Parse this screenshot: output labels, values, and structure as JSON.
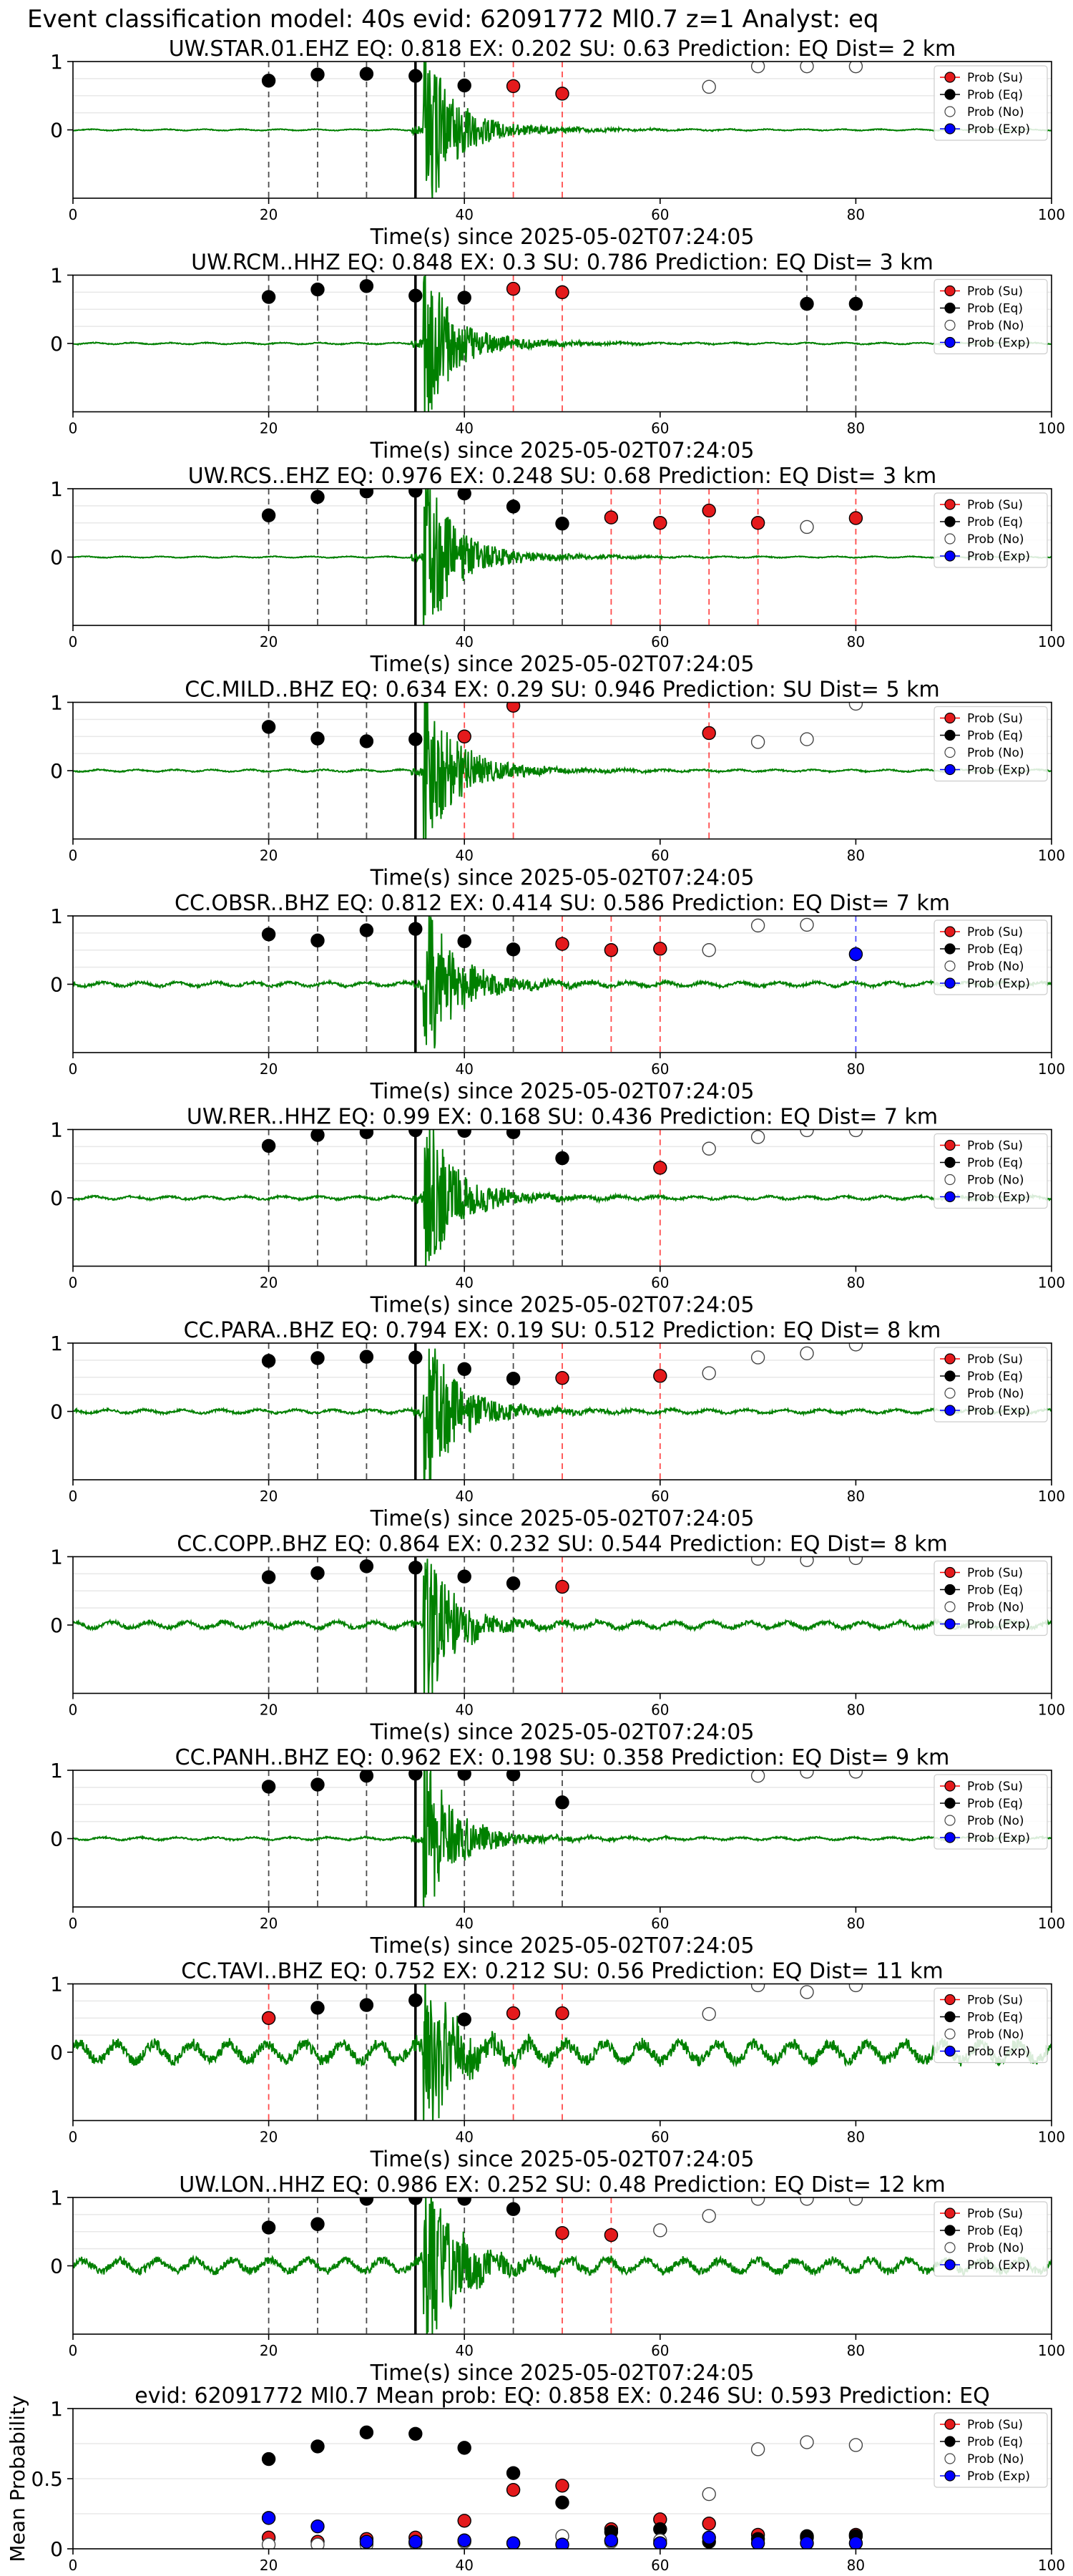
{
  "figure_title": "Event classification model: 40s evid: 62091772 Ml0.7 z=1 Analyst: eq",
  "legend_labels": [
    "Prob (Su)",
    "Prob (Eq)",
    "Prob (No)",
    "Prob (Exp)"
  ],
  "colors": {
    "su": "#e41a1c",
    "eq": "#000000",
    "no": "#ffffff",
    "exp": "#0000ff",
    "waveform": "#008000",
    "grid": "#e8e8e8"
  },
  "chart_data": [
    {
      "type": "scatter",
      "title": "UW.STAR.01.EHZ   EQ: 0.818  EX: 0.202  SU: 0.63   Prediction: EQ    Dist= 2 km",
      "xlabel": "Time(s) since 2025-05-02T07:24:05",
      "xlim": [
        0,
        100
      ],
      "ylim": [
        -1,
        1
      ],
      "yticks": [
        0,
        1
      ],
      "xticks": [
        0,
        20,
        40,
        60,
        80,
        100
      ],
      "legend": "right",
      "pick": 35,
      "amp": 0.5,
      "noise": 0.012,
      "seed": 11,
      "points": [
        {
          "t": 20,
          "p": 0.72,
          "c": "eq"
        },
        {
          "t": 25,
          "p": 0.81,
          "c": "eq"
        },
        {
          "t": 30,
          "p": 0.82,
          "c": "eq"
        },
        {
          "t": 35,
          "p": 0.79,
          "c": "eq"
        },
        {
          "t": 40,
          "p": 0.65,
          "c": "eq"
        },
        {
          "t": 45,
          "p": 0.64,
          "c": "su"
        },
        {
          "t": 50,
          "p": 0.53,
          "c": "su"
        },
        {
          "t": 65,
          "p": 0.63,
          "c": "no"
        },
        {
          "t": 70,
          "p": 0.93,
          "c": "no"
        },
        {
          "t": 75,
          "p": 0.93,
          "c": "no"
        },
        {
          "t": 80,
          "p": 0.93,
          "c": "no"
        }
      ]
    },
    {
      "type": "scatter",
      "title": "UW.RCM..HHZ   EQ: 0.848  EX: 0.3  SU: 0.786   Prediction: EQ    Dist= 3 km",
      "xlabel": "Time(s) since 2025-05-02T07:24:05",
      "xlim": [
        0,
        100
      ],
      "ylim": [
        -1,
        1
      ],
      "yticks": [
        0,
        1
      ],
      "xticks": [
        0,
        20,
        40,
        60,
        80,
        100
      ],
      "legend": "right",
      "pick": 35,
      "amp": 0.45,
      "noise": 0.015,
      "seed": 23,
      "points": [
        {
          "t": 20,
          "p": 0.68,
          "c": "eq"
        },
        {
          "t": 25,
          "p": 0.79,
          "c": "eq"
        },
        {
          "t": 30,
          "p": 0.84,
          "c": "eq"
        },
        {
          "t": 35,
          "p": 0.7,
          "c": "eq"
        },
        {
          "t": 40,
          "p": 0.67,
          "c": "eq"
        },
        {
          "t": 45,
          "p": 0.8,
          "c": "su"
        },
        {
          "t": 50,
          "p": 0.75,
          "c": "su"
        },
        {
          "t": 75,
          "p": 0.58,
          "c": "eq"
        },
        {
          "t": 80,
          "p": 0.58,
          "c": "eq"
        }
      ]
    },
    {
      "type": "scatter",
      "title": "UW.RCS..EHZ   EQ: 0.976  EX: 0.248  SU: 0.68   Prediction: EQ    Dist= 3 km",
      "xlabel": "Time(s) since 2025-05-02T07:24:05",
      "xlim": [
        0,
        100
      ],
      "ylim": [
        -1,
        1
      ],
      "yticks": [
        0,
        1
      ],
      "xticks": [
        0,
        20,
        40,
        60,
        80,
        100
      ],
      "legend": "right",
      "pick": 35,
      "amp": 0.5,
      "noise": 0.012,
      "seed": 37,
      "points": [
        {
          "t": 20,
          "p": 0.61,
          "c": "eq"
        },
        {
          "t": 25,
          "p": 0.88,
          "c": "eq"
        },
        {
          "t": 30,
          "p": 0.96,
          "c": "eq"
        },
        {
          "t": 35,
          "p": 0.97,
          "c": "eq"
        },
        {
          "t": 40,
          "p": 0.93,
          "c": "eq"
        },
        {
          "t": 45,
          "p": 0.74,
          "c": "eq"
        },
        {
          "t": 50,
          "p": 0.49,
          "c": "eq"
        },
        {
          "t": 55,
          "p": 0.58,
          "c": "su"
        },
        {
          "t": 60,
          "p": 0.5,
          "c": "su"
        },
        {
          "t": 65,
          "p": 0.68,
          "c": "su"
        },
        {
          "t": 70,
          "p": 0.5,
          "c": "su"
        },
        {
          "t": 75,
          "p": 0.44,
          "c": "no"
        },
        {
          "t": 80,
          "p": 0.57,
          "c": "su"
        }
      ]
    },
    {
      "type": "scatter",
      "title": "CC.MILD..BHZ   EQ: 0.634  EX: 0.29  SU: 0.946   Prediction: SU    Dist= 5 km",
      "xlabel": "Time(s) since 2025-05-02T07:24:05",
      "xlim": [
        0,
        100
      ],
      "ylim": [
        -1,
        1
      ],
      "yticks": [
        0,
        1
      ],
      "xticks": [
        0,
        20,
        40,
        60,
        80,
        100
      ],
      "legend": "right",
      "pick": 35,
      "amp": 0.5,
      "noise": 0.02,
      "seed": 41,
      "points": [
        {
          "t": 20,
          "p": 0.64,
          "c": "eq"
        },
        {
          "t": 25,
          "p": 0.47,
          "c": "eq"
        },
        {
          "t": 30,
          "p": 0.43,
          "c": "eq"
        },
        {
          "t": 35,
          "p": 0.46,
          "c": "eq"
        },
        {
          "t": 40,
          "p": 0.5,
          "c": "su"
        },
        {
          "t": 45,
          "p": 0.95,
          "c": "su"
        },
        {
          "t": 65,
          "p": 0.55,
          "c": "su"
        },
        {
          "t": 70,
          "p": 0.42,
          "c": "no"
        },
        {
          "t": 75,
          "p": 0.46,
          "c": "no"
        },
        {
          "t": 80,
          "p": 0.98,
          "c": "no"
        }
      ]
    },
    {
      "type": "scatter",
      "title": "CC.OBSR..BHZ   EQ: 0.812  EX: 0.414  SU: 0.586   Prediction: EQ    Dist= 7 km",
      "xlabel": "Time(s) since 2025-05-02T07:24:05",
      "xlim": [
        0,
        100
      ],
      "ylim": [
        -1,
        1
      ],
      "yticks": [
        0,
        1
      ],
      "xticks": [
        0,
        20,
        40,
        60,
        80,
        100
      ],
      "legend": "right",
      "pick": 35,
      "amp": 0.5,
      "noise": 0.04,
      "seed": 53,
      "points": [
        {
          "t": 20,
          "p": 0.73,
          "c": "eq"
        },
        {
          "t": 25,
          "p": 0.64,
          "c": "eq"
        },
        {
          "t": 30,
          "p": 0.79,
          "c": "eq"
        },
        {
          "t": 35,
          "p": 0.81,
          "c": "eq"
        },
        {
          "t": 40,
          "p": 0.63,
          "c": "eq"
        },
        {
          "t": 45,
          "p": 0.51,
          "c": "eq"
        },
        {
          "t": 50,
          "p": 0.59,
          "c": "su"
        },
        {
          "t": 55,
          "p": 0.5,
          "c": "su"
        },
        {
          "t": 60,
          "p": 0.52,
          "c": "su"
        },
        {
          "t": 65,
          "p": 0.5,
          "c": "no"
        },
        {
          "t": 70,
          "p": 0.86,
          "c": "no"
        },
        {
          "t": 75,
          "p": 0.87,
          "c": "no"
        },
        {
          "t": 80,
          "p": 0.44,
          "c": "exp"
        }
      ]
    },
    {
      "type": "scatter",
      "title": "UW.RER..HHZ   EQ: 0.99  EX: 0.168  SU: 0.436   Prediction: EQ    Dist= 7 km",
      "xlabel": "Time(s) since 2025-05-02T07:24:05",
      "xlim": [
        0,
        100
      ],
      "ylim": [
        -1,
        1
      ],
      "yticks": [
        0,
        1
      ],
      "xticks": [
        0,
        20,
        40,
        60,
        80,
        100
      ],
      "legend": "right",
      "pick": 35,
      "amp": 0.5,
      "noise": 0.03,
      "seed": 67,
      "points": [
        {
          "t": 20,
          "p": 0.76,
          "c": "eq"
        },
        {
          "t": 25,
          "p": 0.92,
          "c": "eq"
        },
        {
          "t": 30,
          "p": 0.96,
          "c": "eq"
        },
        {
          "t": 35,
          "p": 0.99,
          "c": "eq"
        },
        {
          "t": 40,
          "p": 0.98,
          "c": "eq"
        },
        {
          "t": 45,
          "p": 0.96,
          "c": "eq"
        },
        {
          "t": 50,
          "p": 0.58,
          "c": "eq"
        },
        {
          "t": 60,
          "p": 0.44,
          "c": "su"
        },
        {
          "t": 65,
          "p": 0.72,
          "c": "no"
        },
        {
          "t": 70,
          "p": 0.89,
          "c": "no"
        },
        {
          "t": 75,
          "p": 0.99,
          "c": "no"
        },
        {
          "t": 80,
          "p": 0.99,
          "c": "no"
        }
      ]
    },
    {
      "type": "scatter",
      "title": "CC.PARA..BHZ   EQ: 0.794  EX: 0.19  SU: 0.512   Prediction: EQ    Dist= 8 km",
      "xlabel": "Time(s) since 2025-05-02T07:24:05",
      "xlim": [
        0,
        100
      ],
      "ylim": [
        -1,
        1
      ],
      "yticks": [
        0,
        1
      ],
      "xticks": [
        0,
        20,
        40,
        60,
        80,
        100
      ],
      "legend": "right",
      "pick": 35,
      "amp": 0.5,
      "noise": 0.035,
      "seed": 71,
      "points": [
        {
          "t": 20,
          "p": 0.74,
          "c": "eq"
        },
        {
          "t": 25,
          "p": 0.78,
          "c": "eq"
        },
        {
          "t": 30,
          "p": 0.8,
          "c": "eq"
        },
        {
          "t": 35,
          "p": 0.79,
          "c": "eq"
        },
        {
          "t": 40,
          "p": 0.62,
          "c": "eq"
        },
        {
          "t": 45,
          "p": 0.48,
          "c": "eq"
        },
        {
          "t": 50,
          "p": 0.49,
          "c": "su"
        },
        {
          "t": 60,
          "p": 0.52,
          "c": "su"
        },
        {
          "t": 65,
          "p": 0.56,
          "c": "no"
        },
        {
          "t": 70,
          "p": 0.79,
          "c": "no"
        },
        {
          "t": 75,
          "p": 0.85,
          "c": "no"
        },
        {
          "t": 80,
          "p": 0.98,
          "c": "no"
        }
      ]
    },
    {
      "type": "scatter",
      "title": "CC.COPP..BHZ   EQ: 0.864  EX: 0.232  SU: 0.544   Prediction: EQ    Dist= 8 km",
      "xlabel": "Time(s) since 2025-05-02T07:24:05",
      "xlim": [
        0,
        100
      ],
      "ylim": [
        -1,
        1
      ],
      "yticks": [
        0,
        1
      ],
      "xticks": [
        0,
        20,
        40,
        60,
        80,
        100
      ],
      "legend": "right",
      "pick": 35,
      "amp": 0.45,
      "noise": 0.06,
      "seed": 83,
      "points": [
        {
          "t": 20,
          "p": 0.7,
          "c": "eq"
        },
        {
          "t": 25,
          "p": 0.76,
          "c": "eq"
        },
        {
          "t": 30,
          "p": 0.86,
          "c": "eq"
        },
        {
          "t": 35,
          "p": 0.84,
          "c": "eq"
        },
        {
          "t": 40,
          "p": 0.71,
          "c": "eq"
        },
        {
          "t": 45,
          "p": 0.61,
          "c": "eq"
        },
        {
          "t": 50,
          "p": 0.56,
          "c": "su"
        },
        {
          "t": 70,
          "p": 0.97,
          "c": "no"
        },
        {
          "t": 75,
          "p": 0.95,
          "c": "no"
        },
        {
          "t": 80,
          "p": 0.98,
          "c": "no"
        }
      ]
    },
    {
      "type": "scatter",
      "title": "CC.PANH..BHZ   EQ: 0.962  EX: 0.198  SU: 0.358   Prediction: EQ    Dist= 9 km",
      "xlabel": "Time(s) since 2025-05-02T07:24:05",
      "xlim": [
        0,
        100
      ],
      "ylim": [
        -1,
        1
      ],
      "yticks": [
        0,
        1
      ],
      "xticks": [
        0,
        20,
        40,
        60,
        80,
        100
      ],
      "legend": "right",
      "pick": 35,
      "amp": 0.45,
      "noise": 0.025,
      "seed": 97,
      "points": [
        {
          "t": 20,
          "p": 0.76,
          "c": "eq"
        },
        {
          "t": 25,
          "p": 0.79,
          "c": "eq"
        },
        {
          "t": 30,
          "p": 0.92,
          "c": "eq"
        },
        {
          "t": 35,
          "p": 0.95,
          "c": "eq"
        },
        {
          "t": 40,
          "p": 0.95,
          "c": "eq"
        },
        {
          "t": 45,
          "p": 0.94,
          "c": "eq"
        },
        {
          "t": 50,
          "p": 0.53,
          "c": "eq"
        },
        {
          "t": 70,
          "p": 0.92,
          "c": "no"
        },
        {
          "t": 75,
          "p": 0.98,
          "c": "no"
        },
        {
          "t": 80,
          "p": 0.98,
          "c": "no"
        }
      ]
    },
    {
      "type": "scatter",
      "title": "CC.TAVI..BHZ   EQ: 0.752  EX: 0.212  SU: 0.56   Prediction: EQ    Dist= 11 km",
      "xlabel": "Time(s) since 2025-05-02T07:24:05",
      "xlim": [
        0,
        100
      ],
      "ylim": [
        -1,
        1
      ],
      "yticks": [
        0,
        1
      ],
      "xticks": [
        0,
        20,
        40,
        60,
        80,
        100
      ],
      "legend": "right",
      "pick": 35,
      "amp": 0.5,
      "noise": 0.18,
      "seed": 101,
      "points": [
        {
          "t": 20,
          "p": 0.5,
          "c": "su"
        },
        {
          "t": 25,
          "p": 0.65,
          "c": "eq"
        },
        {
          "t": 30,
          "p": 0.69,
          "c": "eq"
        },
        {
          "t": 35,
          "p": 0.76,
          "c": "eq"
        },
        {
          "t": 40,
          "p": 0.48,
          "c": "eq"
        },
        {
          "t": 45,
          "p": 0.57,
          "c": "su"
        },
        {
          "t": 50,
          "p": 0.57,
          "c": "su"
        },
        {
          "t": 65,
          "p": 0.56,
          "c": "no"
        },
        {
          "t": 70,
          "p": 0.98,
          "c": "no"
        },
        {
          "t": 75,
          "p": 0.88,
          "c": "no"
        },
        {
          "t": 80,
          "p": 0.98,
          "c": "no"
        }
      ]
    },
    {
      "type": "scatter",
      "title": "UW.LON..HHZ   EQ: 0.986  EX: 0.252  SU: 0.48   Prediction: EQ    Dist= 12 km",
      "xlabel": "Time(s) since 2025-05-02T07:24:05",
      "xlim": [
        0,
        100
      ],
      "ylim": [
        -1,
        1
      ],
      "yticks": [
        0,
        1
      ],
      "xticks": [
        0,
        20,
        40,
        60,
        80,
        100
      ],
      "legend": "right",
      "pick": 35,
      "amp": 0.55,
      "noise": 0.12,
      "seed": 113,
      "points": [
        {
          "t": 20,
          "p": 0.56,
          "c": "eq"
        },
        {
          "t": 25,
          "p": 0.61,
          "c": "eq"
        },
        {
          "t": 30,
          "p": 0.98,
          "c": "eq"
        },
        {
          "t": 35,
          "p": 0.99,
          "c": "eq"
        },
        {
          "t": 40,
          "p": 0.98,
          "c": "eq"
        },
        {
          "t": 45,
          "p": 0.83,
          "c": "eq"
        },
        {
          "t": 50,
          "p": 0.48,
          "c": "su"
        },
        {
          "t": 55,
          "p": 0.45,
          "c": "su"
        },
        {
          "t": 60,
          "p": 0.52,
          "c": "no"
        },
        {
          "t": 65,
          "p": 0.73,
          "c": "no"
        },
        {
          "t": 70,
          "p": 0.98,
          "c": "no"
        },
        {
          "t": 75,
          "p": 0.98,
          "c": "no"
        },
        {
          "t": 80,
          "p": 0.98,
          "c": "no"
        }
      ]
    },
    {
      "type": "scatter",
      "title": "evid: 62091772  Ml0.7   Mean prob:   EQ: 0.858  EX: 0.246  SU: 0.593   Prediction: EQ",
      "xlabel": "",
      "ylabel": "Mean Probability",
      "xlim": [
        0,
        100
      ],
      "ylim": [
        0,
        1
      ],
      "yticks": [
        0,
        0.5,
        1
      ],
      "xticks": [
        0,
        20,
        40,
        60,
        80,
        100
      ],
      "legend": "right",
      "series": [
        {
          "name": "Prob (Su)",
          "c": "su",
          "x": [
            20,
            25,
            30,
            35,
            40,
            45,
            50,
            55,
            60,
            65,
            70,
            75,
            80
          ],
          "values": [
            0.08,
            0.05,
            0.07,
            0.08,
            0.2,
            0.42,
            0.45,
            0.14,
            0.21,
            0.18,
            0.1,
            0.08,
            0.1
          ]
        },
        {
          "name": "Prob (Eq)",
          "c": "eq",
          "x": [
            20,
            25,
            30,
            35,
            40,
            45,
            50,
            55,
            60,
            65,
            70,
            75,
            80
          ],
          "values": [
            0.64,
            0.73,
            0.83,
            0.82,
            0.72,
            0.54,
            0.33,
            0.12,
            0.14,
            0.05,
            0.07,
            0.09,
            0.09
          ]
        },
        {
          "name": "Prob (No)",
          "c": "no",
          "x": [
            20,
            25,
            30,
            35,
            40,
            45,
            50,
            55,
            60,
            65,
            70,
            75,
            80
          ],
          "values": [
            0.03,
            0.03,
            0.03,
            0.04,
            0.05,
            0.04,
            0.09,
            0.05,
            0.06,
            0.39,
            0.71,
            0.76,
            0.74
          ]
        },
        {
          "name": "Prob (Exp)",
          "c": "exp",
          "x": [
            20,
            25,
            30,
            35,
            40,
            45,
            50,
            55,
            60,
            65,
            70,
            75,
            80
          ],
          "values": [
            0.22,
            0.16,
            0.05,
            0.05,
            0.06,
            0.04,
            0.03,
            0.06,
            0.04,
            0.08,
            0.04,
            0.04,
            0.04
          ]
        }
      ]
    }
  ]
}
